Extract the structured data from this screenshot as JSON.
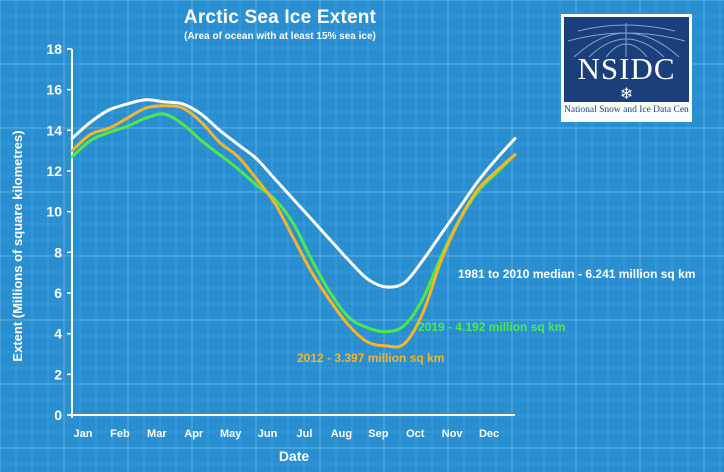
{
  "header": {
    "title": "Arctic Sea Ice Extent",
    "subtitle": "(Area of ocean with at least 15% sea ice)"
  },
  "logo": {
    "name": "NSIDC",
    "full_name": "National Snow and Ice Data Center"
  },
  "annotations": {
    "median": "1981 to 2010 median - 6.241 million sq km",
    "y2019": "2019 -  4.192 million sq km",
    "y2012": "2012 -  3.397 million sq km"
  },
  "colors": {
    "background": "#2a8fd0",
    "median": "#ffffff",
    "y2019": "#4de84d",
    "y2012": "#f5b52a"
  },
  "chart_data": {
    "type": "line",
    "title": "Arctic Sea Ice Extent",
    "xlabel": "Date",
    "ylabel": "Extent (Millions of square kilometres)",
    "categories": [
      "Jan",
      "Feb",
      "Mar",
      "Apr",
      "May",
      "Jun",
      "Jul",
      "Aug",
      "Sep",
      "Oct",
      "Nov",
      "Dec"
    ],
    "ylim": [
      0,
      18
    ],
    "yticks": [
      0,
      2,
      4,
      6,
      8,
      10,
      12,
      14,
      16,
      18
    ],
    "grid": true,
    "series": [
      {
        "name": "1981 to 2010 median",
        "color": "#ffffff",
        "x": [
          0,
          0.5,
          1,
          1.5,
          2,
          2.5,
          3,
          3.5,
          4,
          4.5,
          5,
          5.5,
          6,
          6.5,
          7,
          7.5,
          8,
          8.5,
          9,
          9.5,
          10,
          10.5,
          11,
          11.5,
          12
        ],
        "values": [
          13.6,
          14.4,
          15.0,
          15.3,
          15.5,
          15.4,
          15.3,
          14.8,
          14.0,
          13.3,
          12.6,
          11.6,
          10.6,
          9.6,
          8.6,
          7.6,
          6.7,
          6.3,
          6.5,
          7.6,
          8.9,
          10.2,
          11.5,
          12.6,
          13.6
        ]
      },
      {
        "name": "2019",
        "color": "#4de84d",
        "x": [
          0,
          0.5,
          1,
          1.5,
          2,
          2.5,
          3,
          3.5,
          4,
          4.5,
          5,
          5.5,
          6,
          6.5,
          7,
          7.5,
          8,
          8.5,
          9,
          9.5,
          10,
          10.5,
          11,
          11.5,
          12
        ],
        "values": [
          12.7,
          13.5,
          13.9,
          14.2,
          14.6,
          14.8,
          14.3,
          13.5,
          12.8,
          12.1,
          11.3,
          10.6,
          9.4,
          7.6,
          6.0,
          4.8,
          4.3,
          4.1,
          4.4,
          5.7,
          7.8,
          9.6,
          11.0,
          11.9,
          12.8
        ]
      },
      {
        "name": "2012",
        "color": "#f5b52a",
        "x": [
          0,
          0.5,
          1,
          1.5,
          2,
          2.5,
          3,
          3.5,
          4,
          4.5,
          5,
          5.5,
          6,
          6.5,
          7,
          7.5,
          8,
          8.5,
          9,
          9.5,
          10,
          10.5,
          11,
          11.5,
          12
        ],
        "values": [
          13.0,
          13.8,
          14.1,
          14.6,
          15.1,
          15.2,
          15.1,
          14.4,
          13.4,
          12.7,
          11.6,
          10.4,
          8.7,
          7.0,
          5.6,
          4.4,
          3.6,
          3.4,
          3.5,
          5.0,
          7.6,
          9.6,
          11.1,
          12.0,
          12.8
        ]
      }
    ]
  }
}
